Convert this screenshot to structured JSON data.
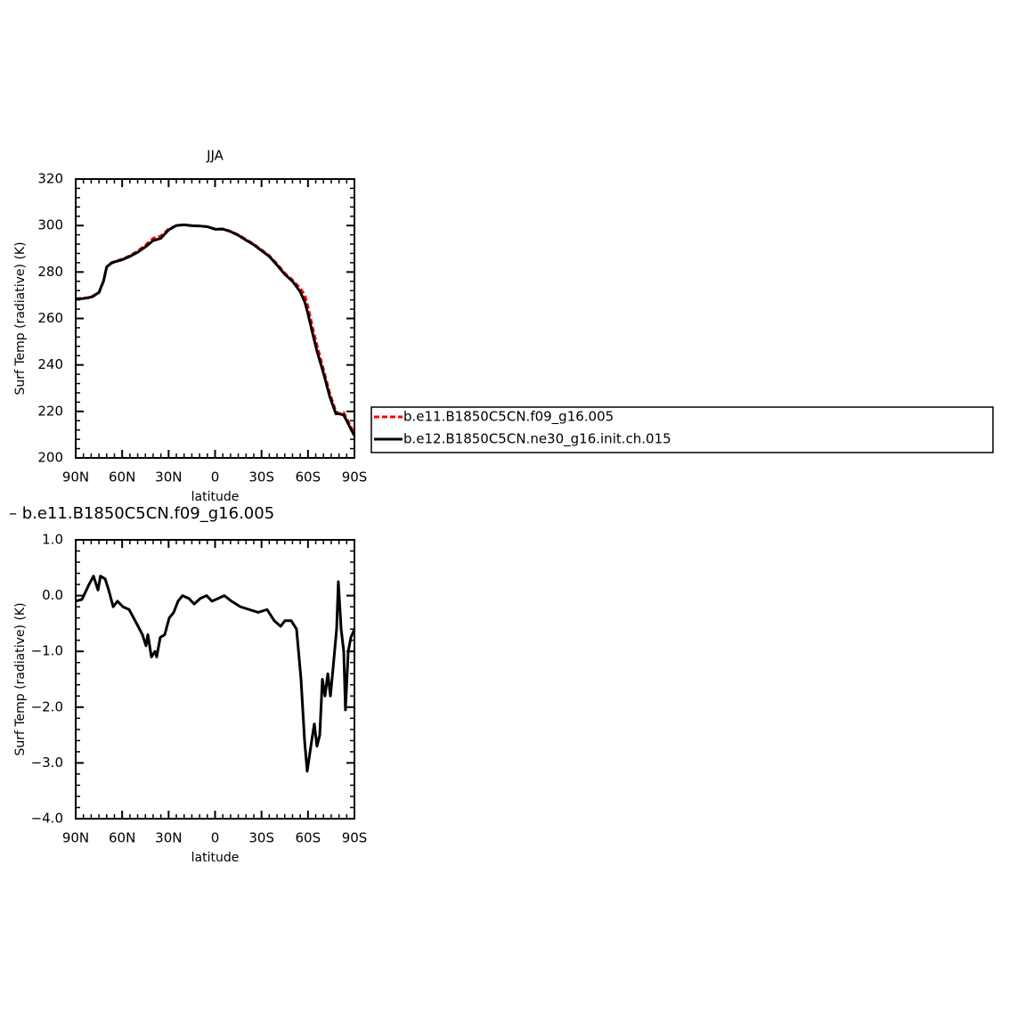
{
  "chart_data": [
    {
      "type": "line",
      "title": "JJA",
      "xlabel": "latitude",
      "ylabel": "Surf Temp (radiative) (K)",
      "x": [
        90,
        85,
        80,
        75,
        72,
        70,
        67,
        65,
        60,
        55,
        50,
        45,
        40,
        35,
        30,
        25,
        20,
        15,
        10,
        5,
        0,
        -5,
        -10,
        -15,
        -20,
        -25,
        -30,
        -35,
        -40,
        -45,
        -50,
        -55,
        -58,
        -60,
        -63,
        -66,
        -70,
        -74,
        -78,
        -80,
        -83,
        -85,
        -88,
        -90
      ],
      "series": [
        {
          "name": "b.e11.B1850C5CN.f09_g16.005",
          "color": "#ff0000",
          "dash": true,
          "values": [
            268.5,
            268.7,
            269,
            271,
            276,
            282,
            284,
            284.5,
            285.5,
            287,
            289,
            291.5,
            294.5,
            295.5,
            298.5,
            300,
            300.3,
            300,
            299.8,
            299.5,
            298.5,
            298.5,
            297.5,
            296,
            294,
            292,
            289.5,
            287,
            283.5,
            279.5,
            276.5,
            273,
            270,
            265,
            256,
            248,
            238,
            228,
            220,
            219,
            219.5,
            217,
            213,
            210
          ]
        },
        {
          "name": "b.e12.B1850C5CN.ne30_g16.init.ch.015",
          "color": "#000000",
          "dash": false,
          "values": [
            268.4,
            268.6,
            269.2,
            271.2,
            276.2,
            282.2,
            283.8,
            284.3,
            285.3,
            286.7,
            288.5,
            290.8,
            293.5,
            294.5,
            298.1,
            300,
            300.3,
            299.9,
            299.8,
            299.5,
            298.4,
            298.5,
            297.4,
            295.8,
            293.7,
            291.7,
            289.2,
            286.7,
            283,
            279,
            276,
            271.5,
            267,
            262,
            253.5,
            245.5,
            236.5,
            226.5,
            219,
            219,
            218.5,
            216,
            212,
            209.5
          ]
        }
      ],
      "xlim": [
        90,
        -90
      ],
      "xticks": [
        {
          "value": 90,
          "label": "90N"
        },
        {
          "value": 60,
          "label": "60N"
        },
        {
          "value": 30,
          "label": "30N"
        },
        0,
        {
          "value": -30,
          "label": "30S"
        },
        {
          "value": -60,
          "label": "60S"
        },
        {
          "value": -90,
          "label": "90S"
        }
      ],
      "ylim": [
        200,
        320
      ],
      "yticks": [
        200,
        220,
        240,
        260,
        280,
        300,
        320
      ],
      "legend": "right"
    },
    {
      "type": "line",
      "title": "– b.e11.B1850C5CN.f09_g16.005",
      "xlabel": "latitude",
      "ylabel": "Surf Temp (radiative) (K)",
      "x": [
        90,
        86,
        81.4,
        78.5,
        75.6,
        74,
        71,
        68.7,
        65.8,
        63,
        59.5,
        55.5,
        52.6,
        49.7,
        46.9,
        44.6,
        43.4,
        41.1,
        38.8,
        37.7,
        35.4,
        32.5,
        29.6,
        26.7,
        23.9,
        21,
        17,
        13.5,
        9.5,
        5.5,
        2,
        -2,
        -6,
        -10.6,
        -16.4,
        -22.1,
        -27.9,
        -33.6,
        -38.2,
        -42.3,
        -45.1,
        -49.2,
        -52.6,
        -55.5,
        -57.8,
        -59.5,
        -62.4,
        -64.1,
        -65.8,
        -67.6,
        -69.3,
        -71,
        -72.8,
        -74.5,
        -76.2,
        -78.5,
        -79.6,
        -81.4,
        -83.1,
        -84.2,
        -86,
        -87.7,
        -90
      ],
      "values": [
        -0.1,
        -0.07,
        0.2,
        0.35,
        0.1,
        0.35,
        0.3,
        0.1,
        -0.2,
        -0.1,
        -0.2,
        -0.25,
        -0.4,
        -0.55,
        -0.7,
        -0.9,
        -0.7,
        -1.1,
        -1.0,
        -1.1,
        -0.75,
        -0.7,
        -0.4,
        -0.3,
        -0.1,
        0.0,
        -0.05,
        -0.15,
        -0.05,
        0.0,
        -0.1,
        -0.05,
        0.0,
        -0.1,
        -0.2,
        -0.25,
        -0.3,
        -0.25,
        -0.45,
        -0.55,
        -0.45,
        -0.45,
        -0.6,
        -1.5,
        -2.6,
        -3.15,
        -2.6,
        -2.3,
        -2.7,
        -2.5,
        -1.5,
        -1.8,
        -1.4,
        -1.8,
        -1.3,
        -0.6,
        0.25,
        -0.6,
        -1.0,
        -2.05,
        -1.0,
        -0.75,
        -0.6
      ],
      "color": "#000000",
      "xlim": [
        90,
        -90
      ],
      "xticks": [
        {
          "value": 90,
          "label": "90N"
        },
        {
          "value": 60,
          "label": "60N"
        },
        {
          "value": 30,
          "label": "30N"
        },
        0,
        {
          "value": -30,
          "label": "30S"
        },
        {
          "value": -60,
          "label": "60S"
        },
        {
          "value": -90,
          "label": "90S"
        }
      ],
      "ylim": [
        -4,
        1
      ],
      "yticks": [
        {
          "value": 1,
          "label": "1.0"
        },
        {
          "value": 0,
          "label": "0.0"
        },
        {
          "value": -1,
          "label": "−1.0"
        },
        {
          "value": -2,
          "label": "−2.0"
        },
        {
          "value": -3,
          "label": "−3.0"
        },
        {
          "value": -4,
          "label": "−4.0"
        }
      ]
    }
  ]
}
